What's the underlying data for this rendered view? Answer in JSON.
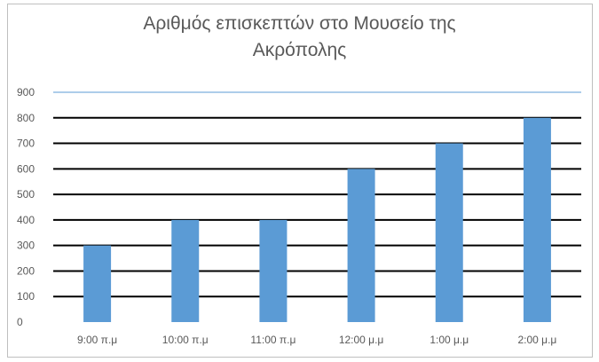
{
  "chart_data": {
    "type": "bar",
    "title": "Αριθμός επισκεπτών στο Μουσείο της Ακρόπολης",
    "categories": [
      "9:00 π.μ",
      "10:00 π.μ",
      "11:00 π.μ",
      "12:00 μ.μ",
      "1:00 μ.μ",
      "2:00 μ.μ"
    ],
    "values": [
      300,
      400,
      400,
      600,
      700,
      800
    ],
    "xlabel": "",
    "ylabel": "",
    "ylim": [
      0,
      900
    ],
    "yticks": [
      0,
      100,
      200,
      300,
      400,
      500,
      600,
      700,
      800,
      900
    ],
    "grid": true,
    "legend": "none",
    "bar_color": "#5b9bd5",
    "grid_color": "#000000"
  }
}
